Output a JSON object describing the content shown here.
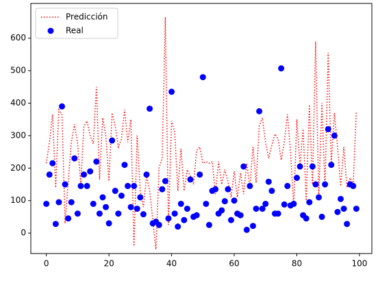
{
  "chart_data": {
    "type": "line",
    "x": [
      0,
      1,
      2,
      3,
      4,
      5,
      6,
      7,
      8,
      9,
      10,
      11,
      12,
      13,
      14,
      15,
      16,
      17,
      18,
      19,
      20,
      21,
      22,
      23,
      24,
      25,
      26,
      27,
      28,
      29,
      30,
      31,
      32,
      33,
      34,
      35,
      36,
      37,
      38,
      39,
      40,
      41,
      42,
      43,
      44,
      45,
      46,
      47,
      48,
      49,
      50,
      51,
      52,
      53,
      54,
      55,
      56,
      57,
      58,
      59,
      60,
      61,
      62,
      63,
      64,
      65,
      66,
      67,
      68,
      69,
      70,
      71,
      72,
      73,
      74,
      75,
      76,
      77,
      78,
      79,
      80,
      81,
      82,
      83,
      84,
      85,
      86,
      87,
      88,
      89,
      90,
      91,
      92,
      93,
      94,
      95,
      96,
      97,
      98,
      99
    ],
    "series": [
      {
        "name": "Predicción",
        "type": "line",
        "color": "#ff0000",
        "style": "dotted",
        "values": [
          215,
          280,
          365,
          140,
          380,
          365,
          30,
          160,
          280,
          335,
          275,
          150,
          330,
          345,
          300,
          275,
          450,
          165,
          355,
          300,
          160,
          370,
          330,
          265,
          290,
          380,
          280,
          350,
          -40,
          300,
          130,
          80,
          175,
          130,
          40,
          -50,
          200,
          230,
          665,
          25,
          345,
          310,
          130,
          260,
          130,
          195,
          175,
          150,
          255,
          265,
          215,
          220,
          215,
          220,
          120,
          220,
          150,
          195,
          160,
          110,
          190,
          110,
          185,
          120,
          215,
          140,
          265,
          155,
          330,
          355,
          280,
          230,
          270,
          305,
          290,
          225,
          280,
          365,
          250,
          85,
          350,
          210,
          320,
          100,
          395,
          150,
          590,
          110,
          400,
          140,
          555,
          215,
          370,
          265,
          145,
          265,
          140,
          170,
          150,
          375
        ]
      },
      {
        "name": "Real",
        "type": "scatter",
        "color": "#0000ff",
        "values": [
          90,
          180,
          215,
          28,
          95,
          390,
          150,
          45,
          95,
          230,
          60,
          145,
          180,
          145,
          190,
          90,
          220,
          60,
          110,
          80,
          30,
          285,
          130,
          60,
          115,
          210,
          145,
          80,
          145,
          75,
          110,
          58,
          180,
          383,
          30,
          35,
          25,
          135,
          160,
          45,
          435,
          60,
          20,
          90,
          40,
          75,
          165,
          50,
          55,
          180,
          480,
          90,
          25,
          130,
          135,
          60,
          70,
          98,
          135,
          40,
          100,
          60,
          55,
          205,
          10,
          145,
          22,
          75,
          375,
          75,
          90,
          158,
          130,
          60,
          60,
          507,
          88,
          145,
          85,
          90,
          170,
          205,
          55,
          45,
          95,
          205,
          150,
          110,
          50,
          150,
          320,
          210,
          300,
          65,
          105,
          75,
          28,
          150,
          145,
          75
        ]
      }
    ],
    "xlim": [
      -4.95,
      103.95
    ],
    "ylim": [
      -63,
      707
    ],
    "xticks": [
      0,
      20,
      40,
      60,
      80,
      100
    ],
    "yticks": [
      0,
      100,
      200,
      300,
      400,
      500,
      600
    ],
    "legend": "upper left",
    "grid": false
  }
}
